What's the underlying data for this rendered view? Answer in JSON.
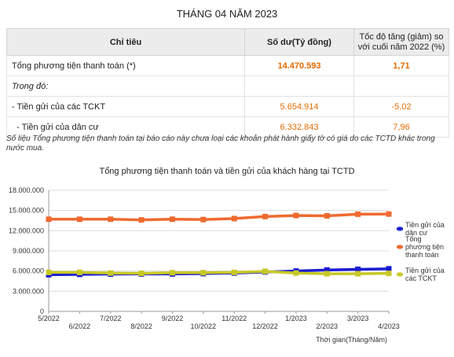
{
  "page_title": "THÁNG 04 NĂM 2023",
  "table": {
    "headers": [
      "Chỉ tiêu",
      "Số dư(Tỷ đồng)",
      "Tốc độ tăng (giảm) so với cuối năm 2022 (%)"
    ],
    "rows": [
      {
        "name": "Tổng phương tiện thanh toán (*)",
        "value": "14.470.593",
        "change": "1,71"
      },
      {
        "name": "Trong đó:",
        "value": "",
        "change": ""
      },
      {
        "name": "- Tiền gửi của các TCKT",
        "value": "5.654.914",
        "change": "-5,02"
      },
      {
        "name": "  - Tiền gửi của dân cư",
        "value": "6.332.843",
        "change": "7,96"
      }
    ]
  },
  "note": "Số liệu Tổng phương tiện thanh toán tại báo cáo này chưa loại các khoản phát hành giấy tờ có giá do các TCTD khác trong nước mua.",
  "chart_title": "Tổng phương tiện thanh toán và tiền gửi của khách hàng tại TCTD",
  "chart_data": {
    "type": "line",
    "title": "Tổng phương tiện thanh toán và tiền gửi của khách hàng tại TCTD",
    "xlabel": "Thời gian(Tháng/Năm)",
    "ylabel": "",
    "categories": [
      "5/2022",
      "6/2022",
      "7/2022",
      "8/2022",
      "9/2022",
      "10/2022",
      "11/2022",
      "12/2022",
      "1/2023",
      "2/2023",
      "3/2023",
      "4/2023"
    ],
    "y_ticks": [
      "0",
      "3.000.000",
      "6.000.000",
      "9.000.000",
      "12.000.000",
      "15.000.000",
      "18.000.000"
    ],
    "ylim": [
      0,
      18000000
    ],
    "grid": true,
    "legend": "right",
    "series": [
      {
        "name": "Tiền gửi của dân cư",
        "color": "#1b1bd1",
        "values": [
          5450000,
          5500000,
          5550000,
          5560000,
          5570000,
          5620000,
          5700000,
          5865000,
          6000000,
          6150000,
          6250000,
          6332843
        ]
      },
      {
        "name": "Tổng phương tiện thanh toán",
        "color": "#ef6a2f",
        "values": [
          13700000,
          13700000,
          13700000,
          13600000,
          13700000,
          13650000,
          13800000,
          14100000,
          14250000,
          14200000,
          14450000,
          14470593
        ]
      },
      {
        "name": "Tiền gửi của các TCKT",
        "color": "#c8c826",
        "values": [
          5800000,
          5800000,
          5700000,
          5650000,
          5750000,
          5750000,
          5800000,
          5953000,
          5700000,
          5600000,
          5600000,
          5654914
        ]
      }
    ]
  }
}
